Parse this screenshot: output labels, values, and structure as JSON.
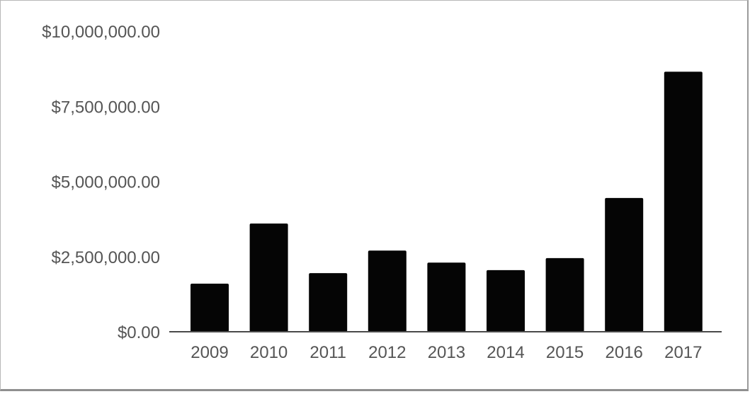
{
  "chart_data": {
    "type": "bar",
    "title": "",
    "xlabel": "",
    "ylabel": "",
    "categories": [
      "2009",
      "2010",
      "2011",
      "2012",
      "2013",
      "2014",
      "2015",
      "2016",
      "2017"
    ],
    "values": [
      1600000,
      3600000,
      1950000,
      2700000,
      2300000,
      2050000,
      2450000,
      4450000,
      8650000
    ],
    "ylim": [
      0,
      10000000
    ],
    "yticks": [
      0,
      2500000,
      5000000,
      7500000,
      10000000
    ],
    "ytick_labels": [
      "$0.00",
      "$2,500,000.00",
      "$5,000,000.00",
      "$7,500,000.00",
      "$10,000,000.00"
    ],
    "grid": false,
    "bar_color": "#050505",
    "legend": "none"
  }
}
